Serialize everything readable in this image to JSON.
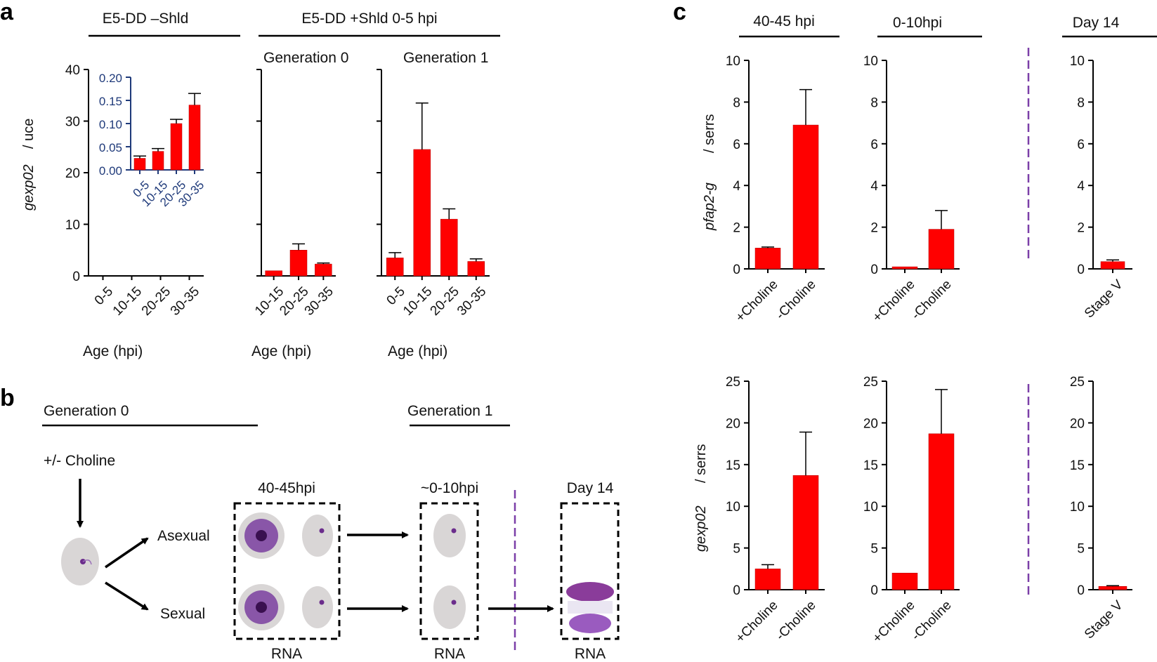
{
  "panels": {
    "a": "a",
    "b": "b",
    "c": "c"
  },
  "panel_a": {
    "header_left": "E5-DD –Shld",
    "header_right": "E5-DD +Shld  0-5 hpi",
    "gen0_label": "Generation  0",
    "gen1_label": "Generation  1",
    "ylabel_gene": "gexp02",
    "ylabel_ref": "/ uce",
    "xlabel": "Age (hpi)"
  },
  "panel_b": {
    "gen0": "Generation  0",
    "gen1": "Generation  1",
    "treatment": "+/- Choline",
    "asexual": "Asexual",
    "sexual": "Sexual",
    "box1_title": "40-45hpi",
    "box2_title": "~0-10hpi",
    "box3_title": "Day 14",
    "rna": "RNA",
    "colors": {
      "dash_line": "#7b3fa8",
      "parasite": "#6b2d8c",
      "cell": "#d9d6d6"
    }
  },
  "panel_c": {
    "col_headers": [
      "40-45 hpi",
      "0-10hpi",
      "Day 14"
    ],
    "row1_gene": "pfap2-g",
    "row1_ref": "/ serrs",
    "row2_gene": "gexp02",
    "row2_ref": "/ serrs"
  },
  "colors": {
    "bar": "#ff0000",
    "bar_edge": "#b00000",
    "inset_axis": "#1f3a7a"
  },
  "chart_data": [
    {
      "id": "a_shld_minus",
      "type": "bar",
      "title": "E5-DD –Shld",
      "categories": [
        "0-5",
        "10-15",
        "20-25",
        "30-35"
      ],
      "values": [
        0,
        0,
        0,
        0
      ],
      "errors": [
        0,
        0,
        0,
        0
      ],
      "ylim": [
        0,
        40
      ],
      "yticks": [
        0,
        10,
        20,
        30,
        40
      ],
      "ylabel": "gexp02 / uce",
      "xlabel": "Age (hpi)"
    },
    {
      "id": "a_inset",
      "type": "bar",
      "categories": [
        "0-5",
        "10-15",
        "20-25",
        "30-35"
      ],
      "values": [
        0.025,
        0.04,
        0.1,
        0.14
      ],
      "errors": [
        0.005,
        0.006,
        0.009,
        0.025
      ],
      "ylim": [
        0,
        0.2
      ],
      "yticks": [
        "0.00",
        "0.05",
        "0.10",
        "0.15",
        "0.20"
      ]
    },
    {
      "id": "a_gen0",
      "type": "bar",
      "title": "Generation  0",
      "categories": [
        "10-15",
        "20-25",
        "30-35"
      ],
      "values": [
        1,
        5,
        2.3
      ],
      "errors": [
        0,
        1.2,
        0.2
      ],
      "ylim": [
        0,
        40
      ],
      "xlabel": "Age (hpi)"
    },
    {
      "id": "a_gen1",
      "type": "bar",
      "title": "Generation  1",
      "categories": [
        "0-5",
        "10-15",
        "20-25",
        "30-35"
      ],
      "values": [
        3.5,
        24.5,
        11,
        2.8
      ],
      "errors": [
        1,
        9,
        2,
        0.5
      ],
      "ylim": [
        0,
        40
      ],
      "xlabel": "Age (hpi)"
    },
    {
      "id": "c_ap2g_4045",
      "type": "bar",
      "title": "40-45 hpi",
      "categories": [
        "+Choline",
        "-Choline"
      ],
      "values": [
        1,
        6.9
      ],
      "errors": [
        0.05,
        1.7
      ],
      "ylim": [
        0,
        10
      ],
      "yticks": [
        0,
        2,
        4,
        6,
        8,
        10
      ],
      "ylabel": "pfap2-g / serrs"
    },
    {
      "id": "c_ap2g_010",
      "type": "bar",
      "title": "0-10hpi",
      "categories": [
        "+Choline",
        "-Choline"
      ],
      "values": [
        0.1,
        1.9
      ],
      "errors": [
        0,
        0.9
      ],
      "ylim": [
        0,
        10
      ],
      "yticks": [
        0,
        2,
        4,
        6,
        8,
        10
      ]
    },
    {
      "id": "c_ap2g_d14",
      "type": "bar",
      "title": "Day 14",
      "categories": [
        "Stage V"
      ],
      "values": [
        0.35
      ],
      "errors": [
        0.08
      ],
      "ylim": [
        0,
        10
      ],
      "yticks": [
        0,
        2,
        4,
        6,
        8,
        10
      ]
    },
    {
      "id": "c_gexp_4045",
      "type": "bar",
      "categories": [
        "+Choline",
        "-Choline"
      ],
      "values": [
        2.5,
        13.7
      ],
      "errors": [
        0.5,
        5.2
      ],
      "ylim": [
        0,
        25
      ],
      "yticks": [
        0,
        5,
        10,
        15,
        20,
        25
      ],
      "ylabel": "gexp02 / serrs"
    },
    {
      "id": "c_gexp_010",
      "type": "bar",
      "categories": [
        "+Choline",
        "-Choline"
      ],
      "values": [
        2,
        18.7
      ],
      "errors": [
        0,
        5.3
      ],
      "ylim": [
        0,
        25
      ],
      "yticks": [
        0,
        5,
        10,
        15,
        20,
        25
      ]
    },
    {
      "id": "c_gexp_d14",
      "type": "bar",
      "categories": [
        "Stage V"
      ],
      "values": [
        0.4
      ],
      "errors": [
        0.08
      ],
      "ylim": [
        0,
        25
      ],
      "yticks": [
        0,
        5,
        10,
        15,
        20,
        25
      ]
    }
  ]
}
